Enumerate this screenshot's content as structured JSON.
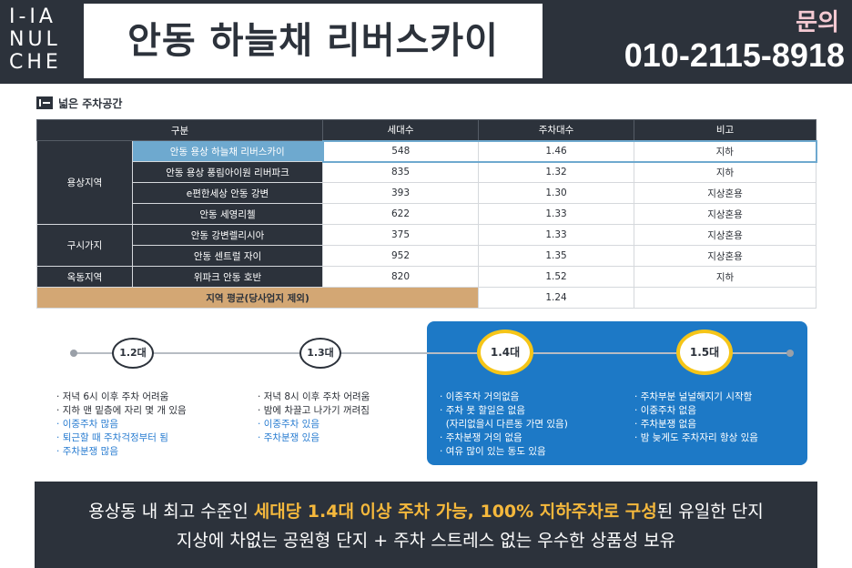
{
  "header": {
    "logo_lines": [
      "I-IA",
      "NUL",
      "CHE"
    ],
    "title": "안동 하늘채 리버스카이",
    "inquiry_label": "문의",
    "phone": "010-2115-8918",
    "colors": {
      "background": "#2c323b",
      "accent_pink": "#f4c9d2"
    }
  },
  "section": {
    "title": "넓은 주차공간"
  },
  "table": {
    "headers": [
      "구분",
      "세대수",
      "주차대수",
      "비고"
    ],
    "rows": [
      {
        "region": "용상지역",
        "complex": "안동 용상 하늘채 리버스카이",
        "households": "548",
        "parking": "1.46",
        "note": "지하",
        "highlight": true
      },
      {
        "region": "",
        "complex": "안동 용상 풍림아이원 리버파크",
        "households": "835",
        "parking": "1.32",
        "note": "지하"
      },
      {
        "region": "",
        "complex": "e편한세상 안동 강변",
        "households": "393",
        "parking": "1.30",
        "note": "지상혼용"
      },
      {
        "region": "",
        "complex": "안동 세영리첼",
        "households": "622",
        "parking": "1.33",
        "note": "지상혼용"
      },
      {
        "region": "구시가지",
        "complex": "안동 강변렐리시아",
        "households": "375",
        "parking": "1.33",
        "note": "지상혼용"
      },
      {
        "region": "",
        "complex": "안동 센트럴 자이",
        "households": "952",
        "parking": "1.35",
        "note": "지상혼용"
      },
      {
        "region": "옥동지역",
        "complex": "위파크 안동 호반",
        "households": "820",
        "parking": "1.52",
        "note": "지하"
      }
    ],
    "average": {
      "label": "지역 평균(당사업지 제외)",
      "parking": "1.24"
    }
  },
  "timeline": {
    "stops": [
      {
        "label": "1.2대",
        "bullets": [
          "저녁 6시 이후 주차 어려움",
          "지하 맨 밑층에 자리 몇 개 있음",
          "이중주차 많음",
          "퇴근할 때 주차걱정부터 됨",
          "주차분쟁 많음"
        ],
        "highlighted_bullets": [
          2,
          3,
          4
        ]
      },
      {
        "label": "1.3대",
        "bullets": [
          "저녁 8시 이후 주차 어려움",
          "밤에 차끌고 나가기 꺼려짐",
          "이중주차 있음",
          "주차분쟁 있음"
        ],
        "highlighted_bullets": [
          2,
          3
        ]
      },
      {
        "label": "1.4대",
        "bullets": [
          "이중주차 거의없음",
          "주차 못 할일은 없음",
          "(자리없을시 다른동 가면 있음)",
          "주차분쟁 거의 없음",
          "여유 많이 있는 동도 있음"
        ]
      },
      {
        "label": "1.5대",
        "bullets": [
          "주차부분 널널해지기 시작함",
          "이중주차 없음",
          "주차분쟁 없음",
          "밤 늦게도 주차자리 항상 있음"
        ]
      }
    ],
    "colors": {
      "panel": "#1d79c6",
      "gold_ring": "#f5c518",
      "highlight_text": "#2a7dd1"
    }
  },
  "footer": {
    "line1_prefix": "용상동 내 최고 수준인 ",
    "line1_accent": "세대당 1.4대 이상 주차 가능, 100% 지하주차로 구성",
    "line1_suffix": "된 유일한 단지",
    "line2": "지상에 차없는 공원형 단지 + 주차 스트레스 없는 우수한 상품성 보유",
    "colors": {
      "accent": "#f5b83c"
    }
  }
}
